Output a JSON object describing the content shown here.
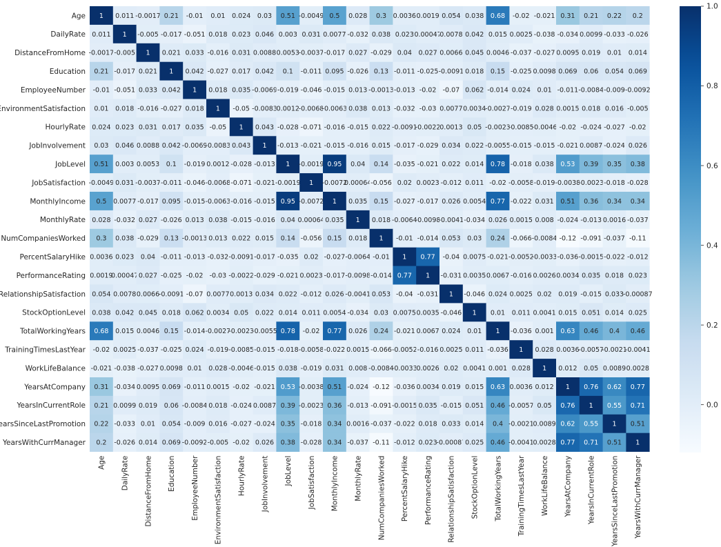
{
  "chart_data": {
    "type": "heatmap",
    "title": "",
    "xlabel": "",
    "ylabel": "",
    "colormap": "Blues",
    "vmin": -0.12,
    "vmax": 1,
    "colorbar_ticks": [
      "1.0",
      "0.8",
      "0.6",
      "0.4",
      "0.2",
      "0.0"
    ],
    "colorbar_tick_values": [
      1.0,
      0.8,
      0.6,
      0.4,
      0.2,
      0.0
    ],
    "variables": [
      "Age",
      "DailyRate",
      "DistanceFromHome",
      "Education",
      "EmployeeNumber",
      "EnvironmentSatisfaction",
      "HourlyRate",
      "JobInvolvement",
      "JobLevel",
      "JobSatisfaction",
      "MonthlyIncome",
      "MonthlyRate",
      "NumCompaniesWorked",
      "PercentSalaryHike",
      "PerformanceRating",
      "RelationshipSatisfaction",
      "StockOptionLevel",
      "TotalWorkingYears",
      "TrainingTimesLastYear",
      "WorkLifeBalance",
      "YearsAtCompany",
      "YearsInCurrentRole",
      "YearsSinceLastPromotion",
      "YearsWithCurrManager"
    ],
    "matrix": [
      [
        "1",
        "0.011",
        "-0.0017",
        "0.21",
        "-0.01",
        "0.01",
        "0.024",
        "0.03",
        "0.51",
        "-0.0049",
        "0.5",
        "0.028",
        "0.3",
        "0.0036",
        "0.0019",
        "0.054",
        "0.038",
        "0.68",
        "-0.02",
        "-0.021",
        "0.31",
        "0.21",
        "0.22",
        "0.2"
      ],
      [
        "0.011",
        "1",
        "-0.005",
        "-0.017",
        "-0.051",
        "0.018",
        "0.023",
        "0.046",
        "0.003",
        "0.031",
        "0.0077",
        "-0.032",
        "0.038",
        "0.023",
        "0.00047",
        "0.0078",
        "0.042",
        "0.015",
        "0.0025",
        "-0.038",
        "-0.034",
        "0.0099",
        "-0.033",
        "-0.026"
      ],
      [
        "-0.0017",
        "-0.005",
        "1",
        "0.021",
        "0.033",
        "-0.016",
        "0.031",
        "0.0088",
        "0.0053",
        "-0.0037",
        "-0.017",
        "0.027",
        "-0.029",
        "0.04",
        "0.027",
        "0.0066",
        "0.045",
        "0.0046",
        "-0.037",
        "-0.027",
        "0.0095",
        "0.019",
        "0.01",
        "0.014"
      ],
      [
        "0.21",
        "-0.017",
        "0.021",
        "1",
        "0.042",
        "-0.027",
        "0.017",
        "0.042",
        "0.1",
        "-0.011",
        "0.095",
        "-0.026",
        "0.13",
        "-0.011",
        "-0.025",
        "-0.0091",
        "0.018",
        "0.15",
        "-0.025",
        "0.0098",
        "0.069",
        "0.06",
        "0.054",
        "0.069"
      ],
      [
        "-0.01",
        "-0.051",
        "0.033",
        "0.042",
        "1",
        "0.018",
        "0.035",
        "-0.0069",
        "-0.019",
        "-0.046",
        "-0.015",
        "0.013",
        "-0.0013",
        "-0.013",
        "-0.02",
        "-0.07",
        "0.062",
        "-0.014",
        "0.024",
        "0.01",
        "-0.011",
        "-0.0084",
        "-0.009",
        "-0.0092"
      ],
      [
        "0.01",
        "0.018",
        "-0.016",
        "-0.027",
        "0.018",
        "1",
        "-0.05",
        "-0.0083",
        "0.0012",
        "-0.0068",
        "-0.0063",
        "0.038",
        "0.013",
        "-0.032",
        "-0.03",
        "0.0077",
        "0.0034",
        "-0.0027",
        "-0.019",
        "0.028",
        "0.0015",
        "0.018",
        "0.016",
        "-0.005"
      ],
      [
        "0.024",
        "0.023",
        "0.031",
        "0.017",
        "0.035",
        "-0.05",
        "1",
        "0.043",
        "-0.028",
        "-0.071",
        "-0.016",
        "-0.015",
        "0.022",
        "-0.0091",
        "-0.0022",
        "0.0013",
        "0.05",
        "-0.0023",
        "-0.0085",
        "-0.0046",
        "-0.02",
        "-0.024",
        "-0.027",
        "-0.02"
      ],
      [
        "0.03",
        "0.046",
        "0.0088",
        "0.042",
        "-0.0069",
        "-0.0083",
        "0.043",
        "1",
        "-0.013",
        "-0.021",
        "-0.015",
        "-0.016",
        "0.015",
        "-0.017",
        "-0.029",
        "0.034",
        "0.022",
        "-0.0055",
        "-0.015",
        "-0.015",
        "-0.021",
        "0.0087",
        "-0.024",
        "0.026"
      ],
      [
        "0.51",
        "0.003",
        "0.0053",
        "0.1",
        "-0.019",
        "0.0012",
        "-0.028",
        "-0.013",
        "1",
        "-0.0019",
        "0.95",
        "0.04",
        "0.14",
        "-0.035",
        "-0.021",
        "0.022",
        "0.014",
        "0.78",
        "-0.018",
        "0.038",
        "0.53",
        "0.39",
        "0.35",
        "0.38"
      ],
      [
        "-0.0049",
        "0.031",
        "-0.0037",
        "-0.011",
        "-0.046",
        "-0.0068",
        "-0.071",
        "-0.021",
        "-0.0019",
        "1",
        "-0.0072",
        "0.00064",
        "-0.056",
        "0.02",
        "0.0023",
        "-0.012",
        "0.011",
        "-0.02",
        "-0.0058",
        "-0.019",
        "-0.0038",
        "-0.0023",
        "-0.018",
        "-0.028"
      ],
      [
        "0.5",
        "0.0077",
        "-0.017",
        "0.095",
        "-0.015",
        "-0.0063",
        "-0.016",
        "-0.015",
        "0.95",
        "-0.0072",
        "1",
        "0.035",
        "0.15",
        "-0.027",
        "-0.017",
        "0.026",
        "0.0054",
        "0.77",
        "-0.022",
        "0.031",
        "0.51",
        "0.36",
        "0.34",
        "0.34"
      ],
      [
        "0.028",
        "-0.032",
        "0.027",
        "-0.026",
        "0.013",
        "0.038",
        "-0.015",
        "-0.016",
        "0.04",
        "0.00064",
        "0.035",
        "1",
        "0.018",
        "-0.0064",
        "-0.0098",
        "-0.0041",
        "-0.034",
        "0.026",
        "0.0015",
        "0.008",
        "-0.024",
        "-0.013",
        "0.0016",
        "-0.037"
      ],
      [
        "0.3",
        "0.038",
        "-0.029",
        "0.13",
        "-0.0013",
        "0.013",
        "0.022",
        "0.015",
        "0.14",
        "-0.056",
        "0.15",
        "0.018",
        "1",
        "-0.01",
        "-0.014",
        "0.053",
        "0.03",
        "0.24",
        "-0.066",
        "-0.0084",
        "-0.12",
        "-0.091",
        "-0.037",
        "-0.11"
      ],
      [
        "0.0036",
        "0.023",
        "0.04",
        "-0.011",
        "-0.013",
        "-0.032",
        "-0.0091",
        "-0.017",
        "-0.035",
        "0.02",
        "-0.027",
        "-0.0064",
        "-0.01",
        "1",
        "0.77",
        "-0.04",
        "0.0075",
        "-0.021",
        "-0.0052",
        "-0.0033",
        "-0.036",
        "-0.0015",
        "-0.022",
        "-0.012"
      ],
      [
        "0.0019",
        "0.00047",
        "0.027",
        "-0.025",
        "-0.02",
        "-0.03",
        "-0.0022",
        "-0.029",
        "-0.021",
        "0.0023",
        "-0.017",
        "-0.0098",
        "-0.014",
        "0.77",
        "1",
        "-0.031",
        "0.0035",
        "0.0067",
        "-0.016",
        "0.0026",
        "0.0034",
        "0.035",
        "0.018",
        "0.023"
      ],
      [
        "0.054",
        "0.0078",
        "0.0066",
        "-0.0091",
        "-0.07",
        "0.0077",
        "0.0013",
        "0.034",
        "0.022",
        "-0.012",
        "0.026",
        "-0.0041",
        "0.053",
        "-0.04",
        "-0.031",
        "1",
        "-0.046",
        "0.024",
        "0.0025",
        "0.02",
        "0.019",
        "-0.015",
        "0.033",
        "-0.00087"
      ],
      [
        "0.038",
        "0.042",
        "0.045",
        "0.018",
        "0.062",
        "0.0034",
        "0.05",
        "0.022",
        "0.014",
        "0.011",
        "0.0054",
        "-0.034",
        "0.03",
        "0.0075",
        "0.0035",
        "-0.046",
        "1",
        "0.01",
        "0.011",
        "0.0041",
        "0.015",
        "0.051",
        "0.014",
        "0.025"
      ],
      [
        "0.68",
        "0.015",
        "0.0046",
        "0.15",
        "-0.014",
        "-0.0027",
        "-0.0023",
        "-0.0055",
        "0.78",
        "-0.02",
        "0.77",
        "0.026",
        "0.24",
        "-0.021",
        "0.0067",
        "0.024",
        "0.01",
        "1",
        "-0.036",
        "0.001",
        "0.63",
        "0.46",
        "0.4",
        "0.46"
      ],
      [
        "-0.02",
        "0.0025",
        "-0.037",
        "-0.025",
        "0.024",
        "-0.019",
        "-0.0085",
        "-0.015",
        "-0.018",
        "-0.0058",
        "-0.022",
        "0.0015",
        "-0.066",
        "-0.0052",
        "-0.016",
        "0.0025",
        "0.011",
        "-0.036",
        "1",
        "0.028",
        "0.0036",
        "-0.0057",
        "-0.0021",
        "-0.0041"
      ],
      [
        "-0.021",
        "-0.038",
        "-0.027",
        "0.0098",
        "0.01",
        "0.028",
        "-0.0046",
        "-0.015",
        "0.038",
        "-0.019",
        "0.031",
        "0.008",
        "-0.0084",
        "-0.0033",
        "0.0026",
        "0.02",
        "0.0041",
        "0.001",
        "0.028",
        "1",
        "0.012",
        "0.05",
        "0.0089",
        "0.0028"
      ],
      [
        "0.31",
        "-0.034",
        "0.0095",
        "0.069",
        "-0.011",
        "0.0015",
        "-0.02",
        "-0.021",
        "0.53",
        "-0.0038",
        "0.51",
        "-0.024",
        "-0.12",
        "-0.036",
        "0.0034",
        "0.019",
        "0.015",
        "0.63",
        "0.0036",
        "0.012",
        "1",
        "0.76",
        "0.62",
        "0.77"
      ],
      [
        "0.21",
        "0.0099",
        "0.019",
        "0.06",
        "-0.0084",
        "0.018",
        "-0.024",
        "0.0087",
        "0.39",
        "-0.0023",
        "0.36",
        "-0.013",
        "-0.091",
        "-0.0015",
        "0.035",
        "-0.015",
        "0.051",
        "0.46",
        "-0.0057",
        "0.05",
        "0.76",
        "1",
        "0.55",
        "0.71"
      ],
      [
        "0.22",
        "-0.033",
        "0.01",
        "0.054",
        "-0.009",
        "0.016",
        "-0.027",
        "-0.024",
        "0.35",
        "-0.018",
        "0.34",
        "0.0016",
        "-0.037",
        "-0.022",
        "0.018",
        "0.033",
        "0.014",
        "0.4",
        "-0.0021",
        "0.0089",
        "0.62",
        "0.55",
        "1",
        "0.51"
      ],
      [
        "0.2",
        "-0.026",
        "0.014",
        "0.069",
        "-0.0092",
        "-0.005",
        "-0.02",
        "0.026",
        "0.38",
        "-0.028",
        "0.34",
        "-0.037",
        "-0.11",
        "-0.012",
        "0.023",
        "-0.00087",
        "0.025",
        "0.46",
        "-0.0041",
        "0.0028",
        "0.77",
        "0.71",
        "0.51",
        "1"
      ]
    ]
  }
}
